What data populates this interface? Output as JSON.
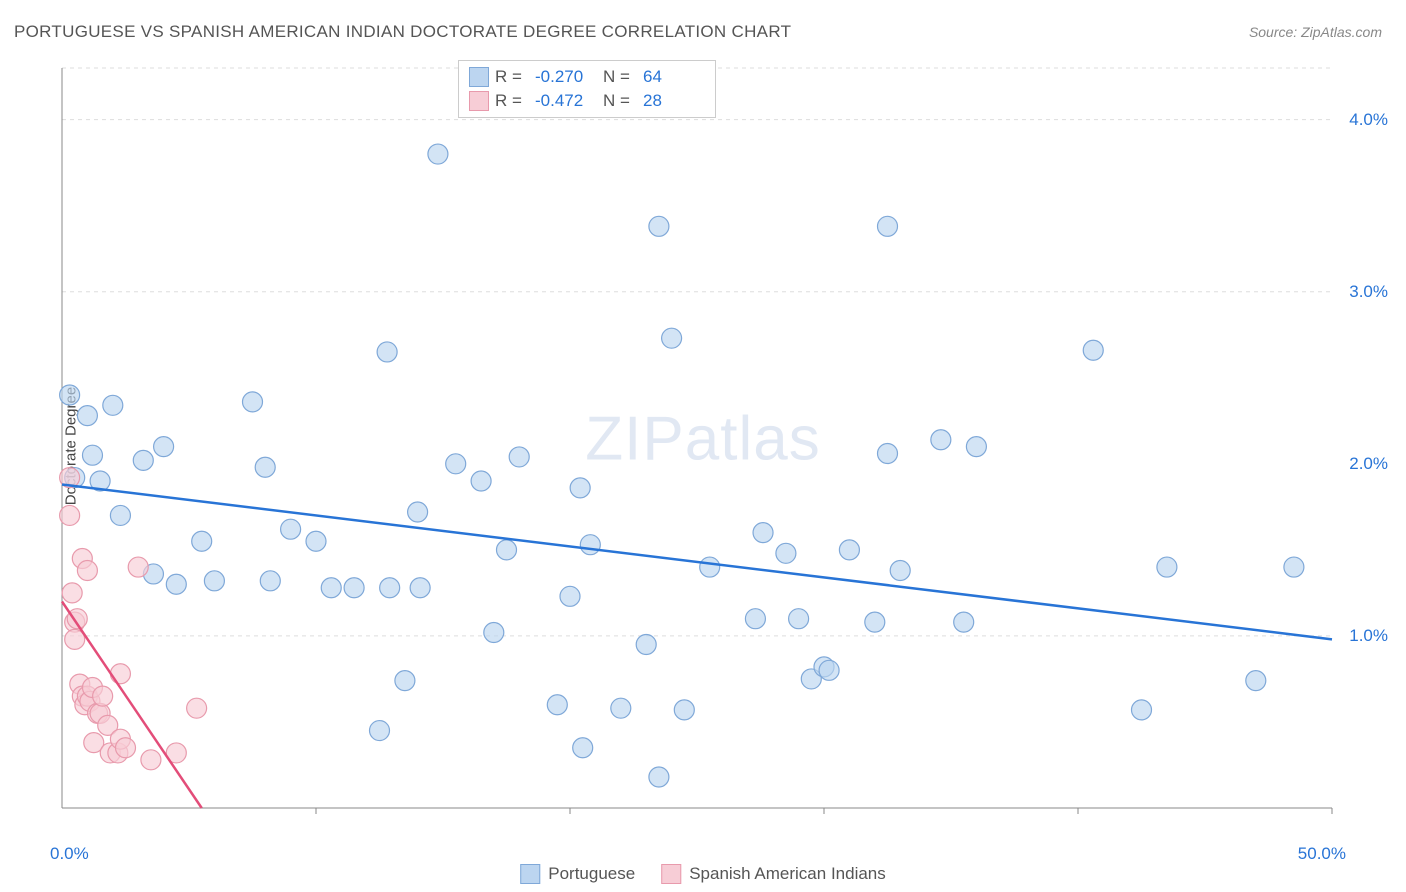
{
  "title": "PORTUGUESE VS SPANISH AMERICAN INDIAN DOCTORATE DEGREE CORRELATION CHART",
  "source": "Source: ZipAtlas.com",
  "ylabel": "Doctorate Degree",
  "watermark_a": "ZIP",
  "watermark_b": "atlas",
  "chart": {
    "type": "scatter",
    "xlim": [
      0,
      50
    ],
    "ylim": [
      0,
      4.3
    ],
    "y_gridlines": [
      1.0,
      3.0,
      4.0
    ],
    "y_top_dashed": 4.3,
    "x_minor_ticks": [
      10,
      20,
      30,
      40,
      50
    ],
    "ytick_labels": [
      {
        "y": 1.0,
        "label": "1.0%"
      },
      {
        "y": 2.0,
        "label": "2.0%"
      },
      {
        "y": 3.0,
        "label": "3.0%"
      },
      {
        "y": 4.0,
        "label": "4.0%"
      }
    ],
    "origin_label": "0.0%",
    "xmax_label": "50.0%",
    "background_color": "#ffffff",
    "grid_color": "#dddddd",
    "axis_color": "#888888",
    "series": [
      {
        "name": "Portuguese",
        "marker_fill": "#bcd5f0",
        "marker_stroke": "#7fa8d8",
        "marker_r": 10,
        "line_color": "#2874d6",
        "trend": {
          "x1": 0,
          "y1": 1.88,
          "x2": 50,
          "y2": 0.98
        },
        "R": "-0.270",
        "N": "64",
        "points": [
          [
            0.3,
            2.4
          ],
          [
            0.5,
            1.92
          ],
          [
            1.0,
            2.28
          ],
          [
            1.2,
            2.05
          ],
          [
            1.5,
            1.9
          ],
          [
            2.0,
            2.34
          ],
          [
            2.3,
            1.7
          ],
          [
            3.2,
            2.02
          ],
          [
            3.6,
            1.36
          ],
          [
            4.0,
            2.1
          ],
          [
            4.5,
            1.3
          ],
          [
            5.5,
            1.55
          ],
          [
            6.0,
            1.32
          ],
          [
            7.5,
            2.36
          ],
          [
            8.0,
            1.98
          ],
          [
            8.2,
            1.32
          ],
          [
            9.0,
            1.62
          ],
          [
            10.0,
            1.55
          ],
          [
            10.6,
            1.28
          ],
          [
            11.5,
            1.28
          ],
          [
            12.5,
            0.45
          ],
          [
            12.8,
            2.65
          ],
          [
            12.9,
            1.28
          ],
          [
            13.5,
            0.74
          ],
          [
            14.0,
            1.72
          ],
          [
            14.1,
            1.28
          ],
          [
            14.8,
            3.8
          ],
          [
            15.5,
            2.0
          ],
          [
            16.5,
            1.9
          ],
          [
            17.0,
            1.02
          ],
          [
            17.5,
            1.5
          ],
          [
            18.0,
            2.04
          ],
          [
            19.5,
            0.6
          ],
          [
            20.0,
            1.23
          ],
          [
            20.4,
            1.86
          ],
          [
            20.5,
            0.35
          ],
          [
            20.8,
            1.53
          ],
          [
            22.0,
            0.58
          ],
          [
            23.0,
            0.95
          ],
          [
            23.5,
            3.38
          ],
          [
            23.5,
            0.18
          ],
          [
            24.0,
            2.73
          ],
          [
            24.5,
            0.57
          ],
          [
            25.5,
            1.4
          ],
          [
            27.3,
            1.1
          ],
          [
            27.6,
            1.6
          ],
          [
            28.5,
            1.48
          ],
          [
            29.0,
            1.1
          ],
          [
            29.5,
            0.75
          ],
          [
            30.0,
            0.82
          ],
          [
            30.2,
            0.8
          ],
          [
            31.0,
            1.5
          ],
          [
            32.0,
            1.08
          ],
          [
            32.5,
            3.38
          ],
          [
            32.5,
            2.06
          ],
          [
            33.0,
            1.38
          ],
          [
            34.6,
            2.14
          ],
          [
            35.5,
            1.08
          ],
          [
            36.0,
            2.1
          ],
          [
            40.6,
            2.66
          ],
          [
            42.5,
            0.57
          ],
          [
            43.5,
            1.4
          ],
          [
            47.0,
            0.74
          ],
          [
            48.5,
            1.4
          ]
        ]
      },
      {
        "name": "Spanish American Indians",
        "marker_fill": "#f7cdd6",
        "marker_stroke": "#e89aac",
        "marker_r": 10,
        "line_color": "#e34d79",
        "trend": {
          "x1": 0,
          "y1": 1.2,
          "x2": 5.5,
          "y2": 0.0
        },
        "R": "-0.472",
        "N": "28",
        "points": [
          [
            0.3,
            1.92
          ],
          [
            0.3,
            1.7
          ],
          [
            0.4,
            1.25
          ],
          [
            0.5,
            1.08
          ],
          [
            0.5,
            0.98
          ],
          [
            0.6,
            1.1
          ],
          [
            0.7,
            0.72
          ],
          [
            0.8,
            0.65
          ],
          [
            0.8,
            1.45
          ],
          [
            0.9,
            0.6
          ],
          [
            1.0,
            0.65
          ],
          [
            1.0,
            1.38
          ],
          [
            1.1,
            0.62
          ],
          [
            1.2,
            0.7
          ],
          [
            1.25,
            0.38
          ],
          [
            1.4,
            0.55
          ],
          [
            1.5,
            0.55
          ],
          [
            1.6,
            0.65
          ],
          [
            1.8,
            0.48
          ],
          [
            1.9,
            0.32
          ],
          [
            2.2,
            0.32
          ],
          [
            2.3,
            0.4
          ],
          [
            2.3,
            0.78
          ],
          [
            2.5,
            0.35
          ],
          [
            3.0,
            1.4
          ],
          [
            3.5,
            0.28
          ],
          [
            4.5,
            0.32
          ],
          [
            5.3,
            0.58
          ]
        ]
      }
    ],
    "legend_top_labels": {
      "R": "R =",
      "N": "N ="
    }
  }
}
